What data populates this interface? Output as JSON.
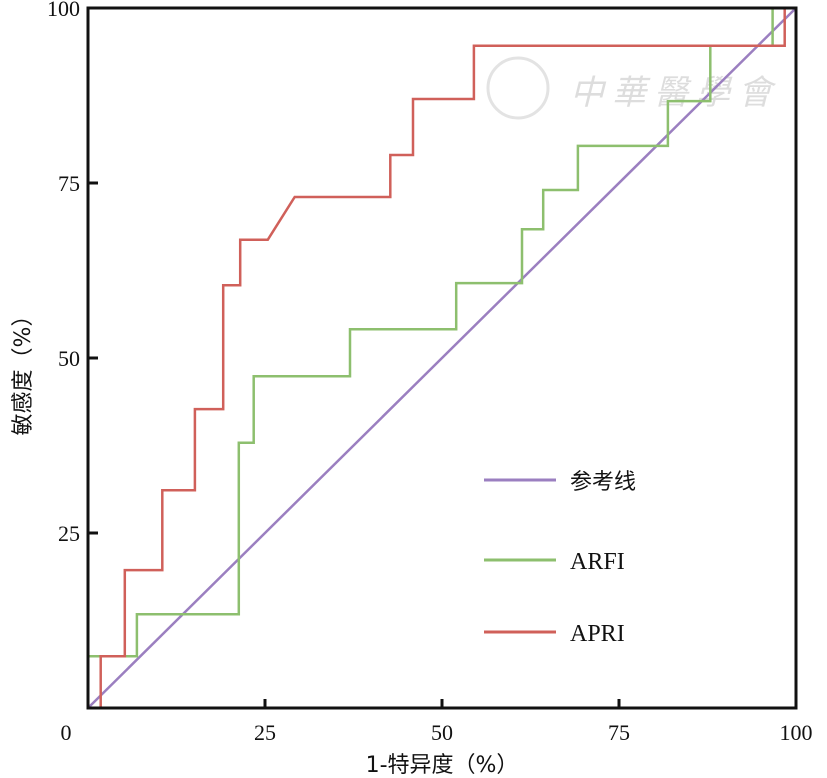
{
  "chart_data": {
    "type": "line",
    "title": "",
    "xlabel": "1-特异度（%）",
    "ylabel": "敏感度（%）",
    "xlim": [
      0,
      100
    ],
    "ylim": [
      0,
      100
    ],
    "origin_label": "0",
    "xticks": [
      25,
      50,
      75,
      100
    ],
    "yticks": [
      25,
      50,
      75,
      100
    ],
    "grid": false,
    "legend_position": "bottom-right",
    "series": [
      {
        "name": "参考线",
        "color": "#9b7fc0",
        "points": [
          [
            0,
            0
          ],
          [
            100,
            100
          ]
        ]
      },
      {
        "name": "ARFI",
        "color": "#8dbf6e",
        "points": [
          [
            0,
            7.4
          ],
          [
            6.9,
            7.4
          ],
          [
            6.9,
            13.4
          ],
          [
            21.3,
            13.4
          ],
          [
            21.3,
            37.9
          ],
          [
            23.4,
            37.9
          ],
          [
            23.4,
            47.4
          ],
          [
            37,
            47.4
          ],
          [
            37,
            54.1
          ],
          [
            52,
            54.1
          ],
          [
            52,
            60.7
          ],
          [
            61.3,
            60.7
          ],
          [
            61.3,
            68.4
          ],
          [
            64.3,
            68.4
          ],
          [
            64.3,
            74
          ],
          [
            69.2,
            74
          ],
          [
            69.2,
            80.3
          ],
          [
            81.9,
            80.3
          ],
          [
            81.9,
            86.7
          ],
          [
            87.9,
            86.7
          ],
          [
            87.9,
            94.6
          ],
          [
            96.7,
            94.6
          ],
          [
            96.7,
            100
          ],
          [
            100,
            100
          ]
        ]
      },
      {
        "name": "APRI",
        "color": "#d0605a",
        "points": [
          [
            1.8,
            0
          ],
          [
            1.8,
            7.4
          ],
          [
            5.2,
            7.4
          ],
          [
            5.2,
            19.7
          ],
          [
            10.5,
            19.7
          ],
          [
            10.5,
            31.1
          ],
          [
            15.1,
            31.1
          ],
          [
            15.1,
            42.7
          ],
          [
            19.1,
            42.7
          ],
          [
            19.1,
            60.4
          ],
          [
            21.5,
            60.4
          ],
          [
            21.5,
            66.9
          ],
          [
            25.4,
            66.9
          ],
          [
            29.2,
            73
          ],
          [
            42.7,
            73
          ],
          [
            42.7,
            79
          ],
          [
            45.9,
            79
          ],
          [
            45.9,
            87
          ],
          [
            54.5,
            87
          ],
          [
            54.5,
            94.6
          ],
          [
            98.4,
            94.6
          ],
          [
            98.4,
            100
          ],
          [
            100,
            100
          ]
        ]
      }
    ]
  },
  "watermark": "中華醫學會"
}
